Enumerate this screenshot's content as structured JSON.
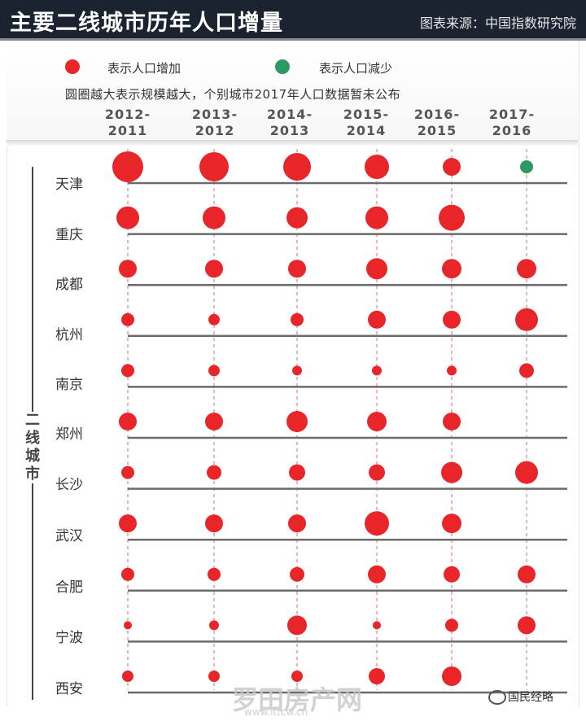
{
  "header": {
    "title": "主要二线城市历年人口增量",
    "source": "图表来源：中国指数研究院"
  },
  "legend": {
    "increase_label": "表示人口增加",
    "decrease_label": "表示人口减少",
    "note": "圆圈越大表示规模越大，个别城市2017年人口数据暂未公布"
  },
  "colors": {
    "increase": "#e8262a",
    "decrease": "#2e9a63",
    "rail": "#6b6b6b",
    "guide": "#d96a6a"
  },
  "group_label": "二线城市",
  "watermark": "罗田房产网",
  "watermark_url": "www.lttcw.cn",
  "brand": "国民经略",
  "chart_data": {
    "type": "scatter",
    "title": "主要二线城市历年人口增量",
    "size_note": "圆圈越大表示规模越大",
    "periods": [
      {
        "line1": "2012-",
        "line2": "2011"
      },
      {
        "line1": "2013-",
        "line2": "2012"
      },
      {
        "line1": "2014-",
        "line2": "2013"
      },
      {
        "line1": "2015-",
        "line2": "2014"
      },
      {
        "line1": "2016-",
        "line2": "2015"
      },
      {
        "line1": "2017-",
        "line2": "2016"
      }
    ],
    "cities": [
      {
        "name": "天津",
        "values": [
          19,
          18,
          17,
          15,
          11,
          -8
        ]
      },
      {
        "name": "重庆",
        "values": [
          14,
          14,
          13,
          14,
          16,
          null
        ]
      },
      {
        "name": "成都",
        "values": [
          11,
          11,
          11,
          13,
          12,
          12
        ]
      },
      {
        "name": "杭州",
        "values": [
          8,
          7,
          8,
          11,
          11,
          14
        ]
      },
      {
        "name": "南京",
        "values": [
          8,
          7,
          6,
          6,
          6,
          9
        ]
      },
      {
        "name": "郑州",
        "values": [
          11,
          11,
          13,
          12,
          11,
          null
        ]
      },
      {
        "name": "长沙",
        "values": [
          8,
          9,
          10,
          10,
          13,
          14
        ]
      },
      {
        "name": "武汉",
        "values": [
          11,
          11,
          11,
          15,
          12,
          null
        ]
      },
      {
        "name": "合肥",
        "values": [
          8,
          8,
          9,
          11,
          10,
          11
        ]
      },
      {
        "name": "宁波",
        "values": [
          5,
          6,
          12,
          5,
          8,
          11
        ]
      },
      {
        "name": "西安",
        "values": [
          7,
          7,
          7,
          10,
          12,
          null
        ]
      }
    ]
  }
}
